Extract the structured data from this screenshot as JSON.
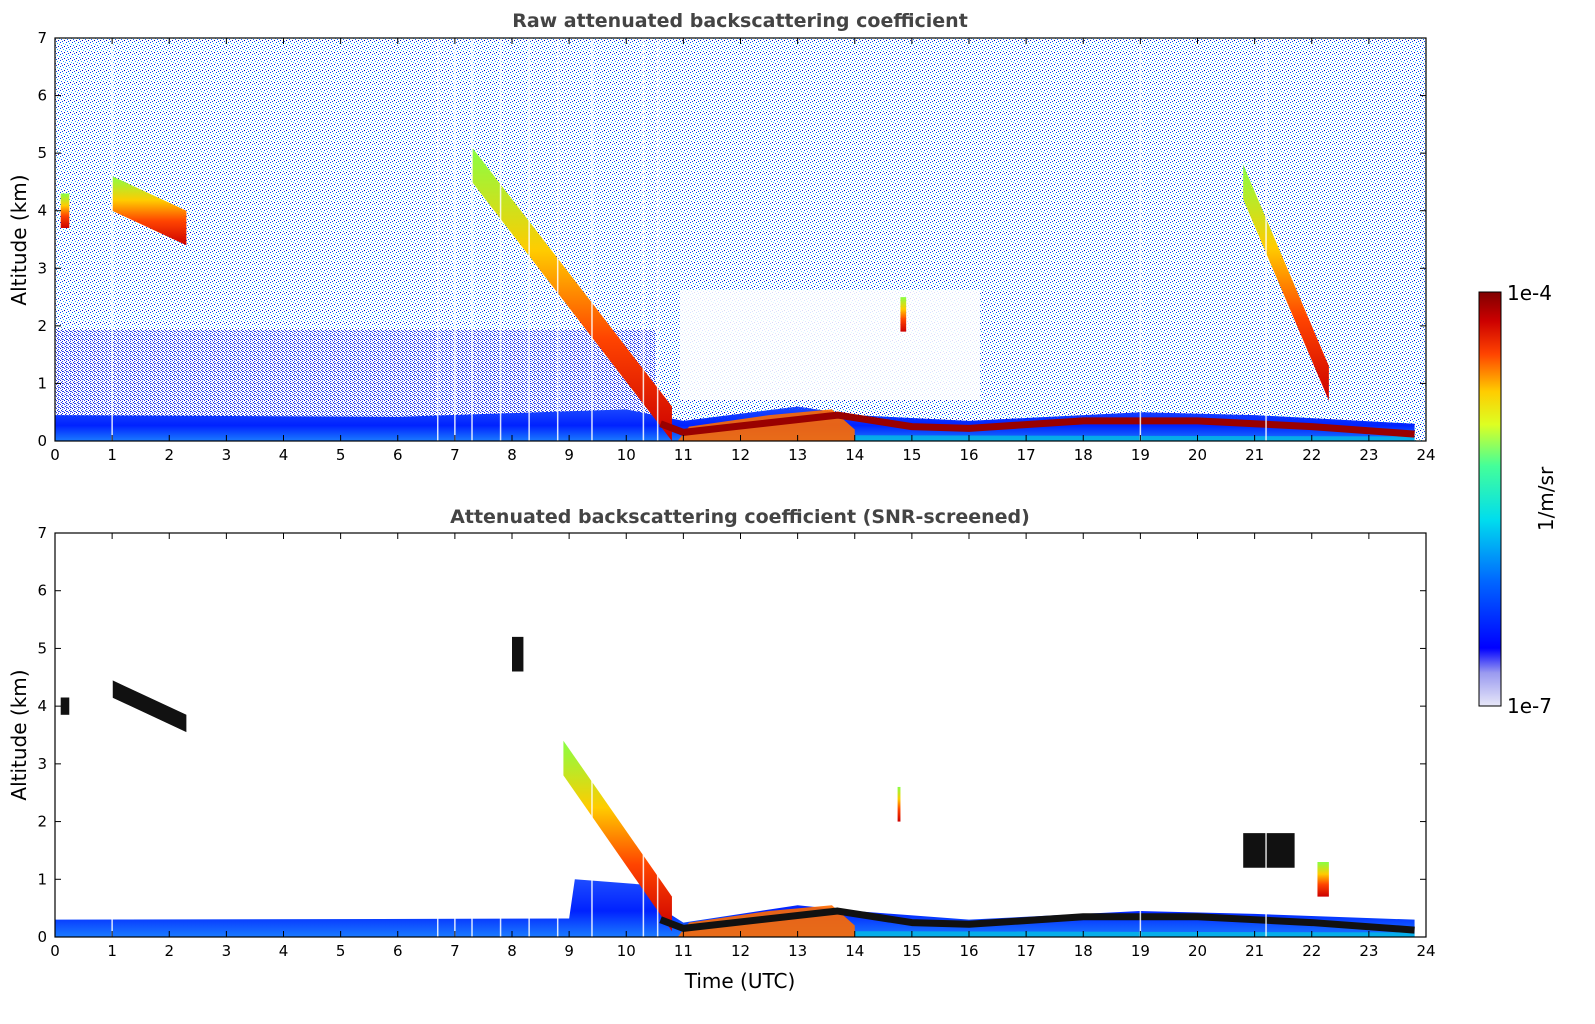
{
  "chart_data": [
    {
      "type": "heatmap",
      "title": "Raw attenuated backscattering coefficient",
      "xlabel": "",
      "ylabel": "Altitude (km)",
      "xlim": [
        0,
        24
      ],
      "ylim": [
        0,
        7
      ],
      "xticks": [
        0,
        1,
        2,
        3,
        4,
        5,
        6,
        7,
        8,
        9,
        10,
        11,
        12,
        13,
        14,
        15,
        16,
        17,
        18,
        19,
        20,
        21,
        22,
        23,
        24
      ],
      "yticks": [
        0,
        1,
        2,
        3,
        4,
        5,
        6,
        7
      ],
      "boundary_layer_top_km": [
        [
          0,
          0.45
        ],
        [
          6,
          0.42
        ],
        [
          10,
          0.55
        ],
        [
          11,
          0.35
        ],
        [
          13,
          0.6
        ],
        [
          14,
          0.45
        ],
        [
          16,
          0.35
        ],
        [
          19,
          0.5
        ],
        [
          21,
          0.45
        ],
        [
          23.8,
          0.3
        ]
      ],
      "cloud_layers": [
        {
          "t_start": 0.1,
          "t_end": 0.25,
          "alt_km": 4.0
        },
        {
          "t_start": 1.0,
          "t_end": 2.3,
          "alt_km_start": 4.3,
          "alt_km_end": 3.7
        },
        {
          "t_start": 7.3,
          "t_end": 10.8,
          "alt_km_start": 4.8,
          "alt_km_end": 0.3
        },
        {
          "t_start": 14.8,
          "t_end": 14.9,
          "alt_km": 2.2
        },
        {
          "t_start": 20.8,
          "t_end": 22.3,
          "alt_km_start": 4.5,
          "alt_km_end": 1.0
        }
      ],
      "strong_layer_km": [
        [
          10.6,
          0.3
        ],
        [
          11,
          0.15
        ],
        [
          13.7,
          0.45
        ],
        [
          15,
          0.25
        ],
        [
          16,
          0.22
        ],
        [
          18,
          0.35
        ],
        [
          20,
          0.35
        ],
        [
          21,
          0.3
        ],
        [
          22,
          0.25
        ],
        [
          23.8,
          0.12
        ]
      ]
    },
    {
      "type": "heatmap",
      "title": "Attenuated backscattering coefficient (SNR-screened)",
      "xlabel": "Time (UTC)",
      "ylabel": "Altitude (km)",
      "xlim": [
        0,
        24
      ],
      "ylim": [
        0,
        7
      ],
      "xticks": [
        0,
        1,
        2,
        3,
        4,
        5,
        6,
        7,
        8,
        9,
        10,
        11,
        12,
        13,
        14,
        15,
        16,
        17,
        18,
        19,
        20,
        21,
        22,
        23,
        24
      ],
      "yticks": [
        0,
        1,
        2,
        3,
        4,
        5,
        6,
        7
      ],
      "boundary_layer_top_km": [
        [
          0,
          0.3
        ],
        [
          9,
          0.32
        ],
        [
          9.1,
          1.0
        ],
        [
          10.4,
          0.9
        ],
        [
          10.6,
          0.5
        ],
        [
          11,
          0.25
        ],
        [
          13,
          0.55
        ],
        [
          14,
          0.45
        ],
        [
          16,
          0.3
        ],
        [
          19,
          0.45
        ],
        [
          21,
          0.4
        ],
        [
          23.8,
          0.3
        ]
      ],
      "cloud_layers": [
        {
          "t_start": 0.1,
          "t_end": 0.25,
          "alt_km": 4.0
        },
        {
          "t_start": 1.0,
          "t_end": 2.3,
          "alt_km_start": 4.3,
          "alt_km_end": 3.7
        },
        {
          "t_start": 8.0,
          "t_end": 8.2,
          "alt_km": 4.9
        },
        {
          "t_start": 8.9,
          "t_end": 10.8,
          "alt_km_start": 3.1,
          "alt_km_end": 0.4
        },
        {
          "t_start": 14.75,
          "t_end": 14.8,
          "alt_km": 2.3
        },
        {
          "t_start": 20.8,
          "t_end": 21.7,
          "alt_km": 1.5
        },
        {
          "t_start": 22.1,
          "t_end": 22.3,
          "alt_km": 1.0
        }
      ],
      "strong_layer_km": [
        [
          10.6,
          0.3
        ],
        [
          11,
          0.15
        ],
        [
          13.7,
          0.45
        ],
        [
          15,
          0.25
        ],
        [
          16,
          0.22
        ],
        [
          18,
          0.35
        ],
        [
          20,
          0.35
        ],
        [
          21,
          0.3
        ],
        [
          22,
          0.25
        ],
        [
          23.8,
          0.12
        ]
      ]
    }
  ],
  "colorbar": {
    "label": "1/m/sr",
    "max_label": "1e-4",
    "min_label": "1e-7",
    "range": [
      1e-07,
      0.0001
    ],
    "scale": "log",
    "colormap": "jet",
    "colors": [
      "#e8e8f8",
      "#0000ff",
      "#00aaff",
      "#00ffcc",
      "#ffff00",
      "#ff6600",
      "#cc0000",
      "#800000"
    ]
  }
}
